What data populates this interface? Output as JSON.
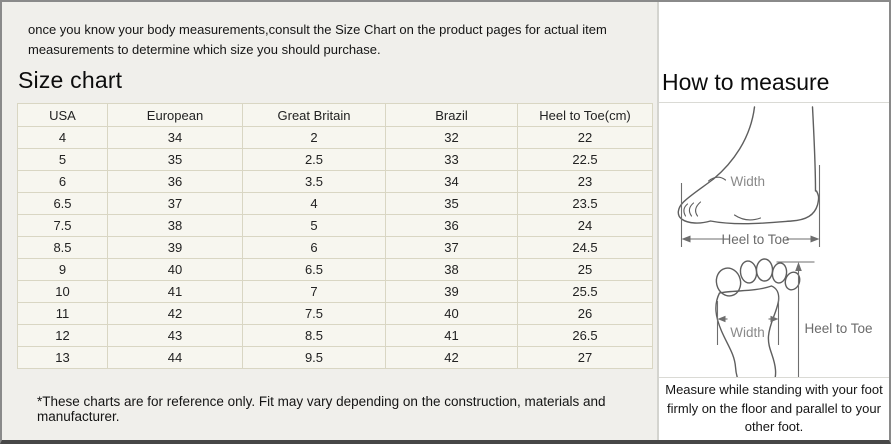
{
  "page": {
    "intro": "once you know your body measurements,consult the Size Chart on the product pages for actual item measurements to determine which size you should purchase.",
    "size_chart_title": "Size chart",
    "how_to_measure_title": "How to measure",
    "footnote": "*These charts are for reference only. Fit may vary depending on the construction, materials and manufacturer.",
    "measure_note": "Measure while standing with your foot firmly on the floor and parallel to your other foot."
  },
  "size_chart": {
    "columns": [
      "USA",
      "European",
      "Great Britain",
      "Brazil",
      "Heel to Toe(cm)"
    ],
    "rows": [
      [
        "4",
        "34",
        "2",
        "32",
        "22"
      ],
      [
        "5",
        "35",
        "2.5",
        "33",
        "22.5"
      ],
      [
        "6",
        "36",
        "3.5",
        "34",
        "23"
      ],
      [
        "6.5",
        "37",
        "4",
        "35",
        "23.5"
      ],
      [
        "7.5",
        "38",
        "5",
        "36",
        "24"
      ],
      [
        "8.5",
        "39",
        "6",
        "37",
        "24.5"
      ],
      [
        "9",
        "40",
        "6.5",
        "38",
        "25"
      ],
      [
        "10",
        "41",
        "7",
        "39",
        "25.5"
      ],
      [
        "11",
        "42",
        "7.5",
        "40",
        "26"
      ],
      [
        "12",
        "43",
        "8.5",
        "41",
        "26.5"
      ],
      [
        "13",
        "44",
        "9.5",
        "42",
        "27"
      ]
    ]
  },
  "diagrams": {
    "side_view": {
      "width_label": "Width",
      "length_label": "Heel to Toe"
    },
    "sole_view": {
      "width_label": "Width",
      "length_label": "Heel to Toe"
    }
  },
  "colors": {
    "panel_bg": "#f0efeb",
    "cell_bg": "#f7f6ef",
    "cell_border": "#d9d6c3",
    "outer_border": "#8a8a8a",
    "bottom_border": "#474747",
    "diagram_stroke": "#5e5e5e",
    "label_gray": "#8a8a8a"
  }
}
